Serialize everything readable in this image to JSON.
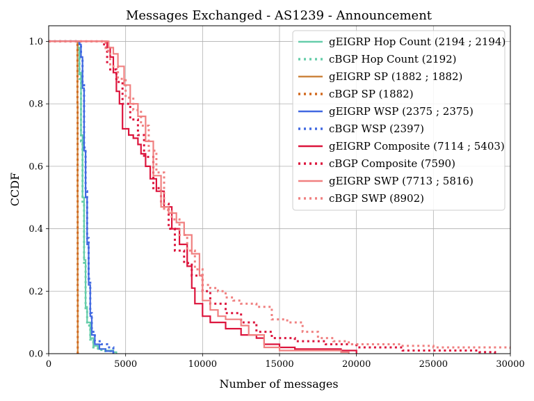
{
  "chart_data": {
    "type": "line",
    "title": "Messages Exchanged - AS1239 - Announcement",
    "xlabel": "Number of messages",
    "ylabel": "CCDF",
    "xlim": [
      0,
      30000
    ],
    "ylim": [
      0,
      1.05
    ],
    "xticks": [
      0,
      5000,
      10000,
      15000,
      20000,
      25000,
      30000
    ],
    "xtick_labels": [
      "0",
      "5000",
      "10000",
      "15000",
      "20000",
      "25000",
      "30000"
    ],
    "yticks": [
      0.0,
      0.2,
      0.4,
      0.6,
      0.8,
      1.0
    ],
    "ytick_labels": [
      "0.0",
      "0.2",
      "0.4",
      "0.6",
      "0.8",
      "1.0"
    ],
    "grid": true,
    "legend_position": "top-right",
    "series": [
      {
        "name": "gEIGRP Hop Count (2194 ; 2194)",
        "color": "#66cdaa",
        "style": "solid",
        "points": [
          [
            0,
            1.0
          ],
          [
            1750,
            1.0
          ],
          [
            1900,
            0.98
          ],
          [
            2000,
            0.9
          ],
          [
            2100,
            0.7
          ],
          [
            2200,
            0.5
          ],
          [
            2300,
            0.3
          ],
          [
            2400,
            0.15
          ],
          [
            2500,
            0.1
          ],
          [
            2700,
            0.05
          ],
          [
            2900,
            0.025
          ],
          [
            3200,
            0.015
          ],
          [
            3700,
            0.01
          ],
          [
            4200,
            0.005
          ],
          [
            4400,
            0.0
          ]
        ]
      },
      {
        "name": "cBGP Hop Count (2192)",
        "color": "#66cdaa",
        "style": "dotted",
        "points": [
          [
            0,
            1.0
          ],
          [
            1750,
            1.0
          ],
          [
            1900,
            0.97
          ],
          [
            2000,
            0.88
          ],
          [
            2100,
            0.68
          ],
          [
            2200,
            0.48
          ],
          [
            2300,
            0.28
          ],
          [
            2400,
            0.14
          ],
          [
            2500,
            0.09
          ],
          [
            2700,
            0.045
          ],
          [
            2900,
            0.02
          ],
          [
            3200,
            0.012
          ],
          [
            3600,
            0.008
          ],
          [
            4100,
            0.0
          ]
        ]
      },
      {
        "name": "gEIGRP SP (1882 ; 1882)",
        "color": "#cd853f",
        "style": "solid",
        "points": [
          [
            0,
            1.0
          ],
          [
            1850,
            1.0
          ],
          [
            1870,
            0.8
          ],
          [
            1880,
            0.5
          ],
          [
            1885,
            0.2
          ],
          [
            1890,
            0.0
          ]
        ]
      },
      {
        "name": "cBGP SP (1882)",
        "color": "#d2691e",
        "style": "dotted",
        "points": [
          [
            0,
            1.0
          ],
          [
            1850,
            1.0
          ],
          [
            1870,
            0.8
          ],
          [
            1880,
            0.5
          ],
          [
            1885,
            0.2
          ],
          [
            1890,
            0.0
          ]
        ]
      },
      {
        "name": "gEIGRP WSP (2375 ; 2375)",
        "color": "#4169e1",
        "style": "solid",
        "points": [
          [
            0,
            1.0
          ],
          [
            1900,
            1.0
          ],
          [
            2000,
            0.99
          ],
          [
            2100,
            0.95
          ],
          [
            2200,
            0.85
          ],
          [
            2300,
            0.65
          ],
          [
            2400,
            0.5
          ],
          [
            2500,
            0.35
          ],
          [
            2600,
            0.22
          ],
          [
            2700,
            0.12
          ],
          [
            2800,
            0.06
          ],
          [
            3000,
            0.03
          ],
          [
            3300,
            0.015
          ],
          [
            3700,
            0.008
          ],
          [
            4200,
            0.0
          ]
        ]
      },
      {
        "name": "cBGP WSP (2397)",
        "color": "#4169e1",
        "style": "dotted",
        "points": [
          [
            0,
            1.0
          ],
          [
            1900,
            1.0
          ],
          [
            2000,
            0.99
          ],
          [
            2100,
            0.95
          ],
          [
            2200,
            0.86
          ],
          [
            2300,
            0.66
          ],
          [
            2400,
            0.52
          ],
          [
            2500,
            0.37
          ],
          [
            2600,
            0.24
          ],
          [
            2700,
            0.13
          ],
          [
            2800,
            0.07
          ],
          [
            3000,
            0.04
          ],
          [
            3400,
            0.03
          ],
          [
            3800,
            0.02
          ],
          [
            4200,
            0.0
          ]
        ]
      },
      {
        "name": "gEIGRP Composite (7114 ; 5403)",
        "color": "#dc143c",
        "style": "solid",
        "points": [
          [
            0,
            1.0
          ],
          [
            3600,
            1.0
          ],
          [
            3800,
            0.98
          ],
          [
            4000,
            0.95
          ],
          [
            4200,
            0.9
          ],
          [
            4400,
            0.84
          ],
          [
            4600,
            0.8
          ],
          [
            4800,
            0.72
          ],
          [
            5000,
            0.72
          ],
          [
            5200,
            0.7
          ],
          [
            5500,
            0.69
          ],
          [
            5800,
            0.67
          ],
          [
            6000,
            0.64
          ],
          [
            6300,
            0.6
          ],
          [
            6600,
            0.56
          ],
          [
            7000,
            0.52
          ],
          [
            7500,
            0.47
          ],
          [
            8000,
            0.4
          ],
          [
            8500,
            0.35
          ],
          [
            9000,
            0.28
          ],
          [
            9300,
            0.21
          ],
          [
            9500,
            0.16
          ],
          [
            10000,
            0.12
          ],
          [
            10500,
            0.1
          ],
          [
            11500,
            0.08
          ],
          [
            12500,
            0.06
          ],
          [
            13500,
            0.05
          ],
          [
            14000,
            0.03
          ],
          [
            15000,
            0.02
          ],
          [
            16000,
            0.015
          ],
          [
            19000,
            0.01
          ],
          [
            20000,
            0.0
          ]
        ]
      },
      {
        "name": "cBGP Composite (7590)",
        "color": "#dc143c",
        "style": "dotted",
        "points": [
          [
            0,
            1.0
          ],
          [
            3400,
            1.0
          ],
          [
            3600,
            0.98
          ],
          [
            3800,
            0.93
          ],
          [
            4000,
            0.91
          ],
          [
            4400,
            0.87
          ],
          [
            4800,
            0.8
          ],
          [
            5300,
            0.75
          ],
          [
            5800,
            0.7
          ],
          [
            6200,
            0.63
          ],
          [
            6800,
            0.53
          ],
          [
            7300,
            0.48
          ],
          [
            7800,
            0.4
          ],
          [
            8200,
            0.33
          ],
          [
            8800,
            0.29
          ],
          [
            9300,
            0.25
          ],
          [
            10000,
            0.2
          ],
          [
            10500,
            0.16
          ],
          [
            11500,
            0.13
          ],
          [
            12500,
            0.1
          ],
          [
            13500,
            0.07
          ],
          [
            14500,
            0.05
          ],
          [
            16000,
            0.04
          ],
          [
            18000,
            0.03
          ],
          [
            20000,
            0.02
          ],
          [
            23000,
            0.01
          ],
          [
            26000,
            0.01
          ],
          [
            28000,
            0.005
          ],
          [
            29000,
            0.0
          ]
        ]
      },
      {
        "name": "gEIGRP SWP (7713 ; 5816)",
        "color": "#f08080",
        "style": "solid",
        "points": [
          [
            0,
            1.0
          ],
          [
            3600,
            1.0
          ],
          [
            3900,
            0.98
          ],
          [
            4200,
            0.96
          ],
          [
            4500,
            0.92
          ],
          [
            4900,
            0.86
          ],
          [
            5300,
            0.8
          ],
          [
            5800,
            0.76
          ],
          [
            6300,
            0.68
          ],
          [
            6800,
            0.57
          ],
          [
            7300,
            0.47
          ],
          [
            7800,
            0.45
          ],
          [
            8300,
            0.42
          ],
          [
            8800,
            0.38
          ],
          [
            9300,
            0.32
          ],
          [
            9800,
            0.25
          ],
          [
            10000,
            0.17
          ],
          [
            10500,
            0.14
          ],
          [
            11000,
            0.12
          ],
          [
            11500,
            0.11
          ],
          [
            12500,
            0.09
          ],
          [
            13000,
            0.06
          ],
          [
            14000,
            0.02
          ],
          [
            15000,
            0.01
          ],
          [
            19000,
            0.005
          ],
          [
            19500,
            0.0
          ]
        ]
      },
      {
        "name": "cBGP SWP (8902)",
        "color": "#f08080",
        "style": "dotted",
        "points": [
          [
            0,
            1.0
          ],
          [
            3500,
            1.0
          ],
          [
            3700,
            0.97
          ],
          [
            4000,
            0.92
          ],
          [
            4500,
            0.88
          ],
          [
            5000,
            0.82
          ],
          [
            5500,
            0.78
          ],
          [
            6000,
            0.73
          ],
          [
            6500,
            0.65
          ],
          [
            7000,
            0.58
          ],
          [
            7500,
            0.46
          ],
          [
            8000,
            0.43
          ],
          [
            8500,
            0.38
          ],
          [
            9000,
            0.33
          ],
          [
            9500,
            0.27
          ],
          [
            10000,
            0.22
          ],
          [
            10500,
            0.21
          ],
          [
            11000,
            0.2
          ],
          [
            11500,
            0.18
          ],
          [
            12000,
            0.17
          ],
          [
            12500,
            0.16
          ],
          [
            13500,
            0.15
          ],
          [
            14500,
            0.11
          ],
          [
            15500,
            0.1
          ],
          [
            16500,
            0.07
          ],
          [
            17500,
            0.05
          ],
          [
            18500,
            0.04
          ],
          [
            19500,
            0.03
          ],
          [
            21000,
            0.03
          ],
          [
            23000,
            0.025
          ],
          [
            25000,
            0.02
          ],
          [
            28000,
            0.02
          ],
          [
            30000,
            0.015
          ]
        ]
      }
    ]
  }
}
